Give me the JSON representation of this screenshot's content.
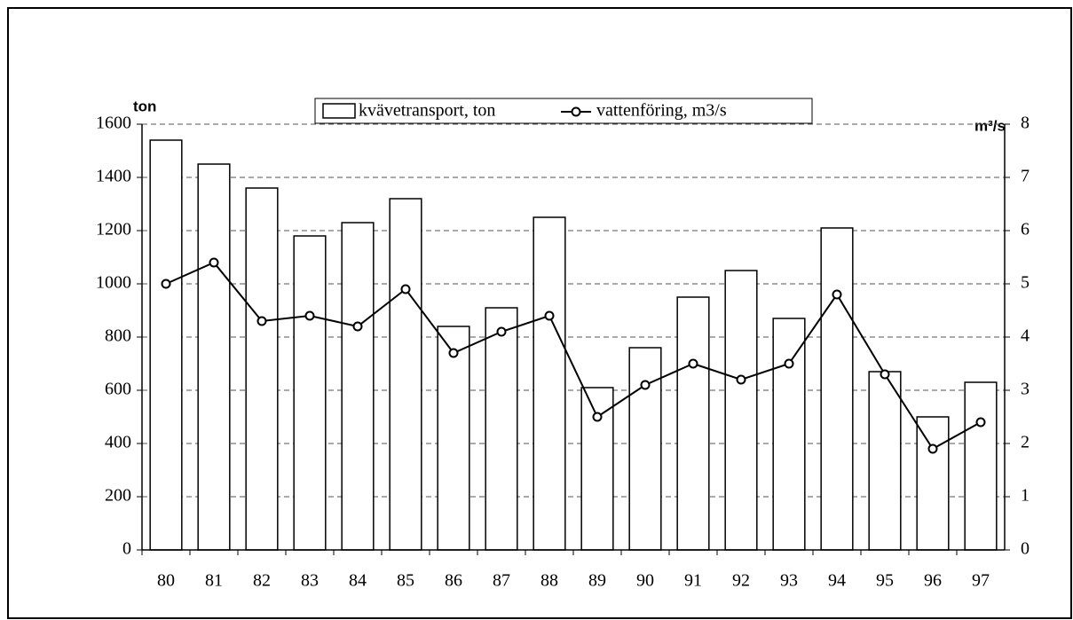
{
  "chart_data": {
    "type": "bar-line",
    "y_label": "ton",
    "y2_label": "m³/s",
    "categories": [
      "80",
      "81",
      "82",
      "83",
      "84",
      "85",
      "86",
      "87",
      "88",
      "89",
      "90",
      "91",
      "92",
      "93",
      "94",
      "95",
      "96",
      "97"
    ],
    "series": [
      {
        "name": "kvävetransport, ton",
        "type": "bar",
        "color": "#ffffff",
        "values": [
          1540,
          1450,
          1360,
          1180,
          1230,
          1320,
          840,
          910,
          1250,
          610,
          760,
          950,
          1050,
          870,
          1210,
          670,
          500,
          630
        ]
      },
      {
        "name": "vattenföring, m3/s",
        "type": "line",
        "axis": "y2",
        "color": "#000000",
        "values": [
          5.0,
          5.4,
          4.3,
          4.4,
          4.2,
          4.9,
          3.7,
          4.1,
          4.4,
          2.5,
          3.1,
          3.5,
          3.2,
          3.5,
          4.8,
          3.3,
          1.9,
          2.4
        ]
      }
    ],
    "ylim": [
      0,
      1600
    ],
    "yticks": [
      0,
      200,
      400,
      600,
      800,
      1000,
      1200,
      1400,
      1600
    ],
    "y2lim": [
      0,
      8
    ],
    "y2ticks": [
      0,
      1,
      2,
      3,
      4,
      5,
      6,
      7,
      8
    ],
    "grid": true
  }
}
